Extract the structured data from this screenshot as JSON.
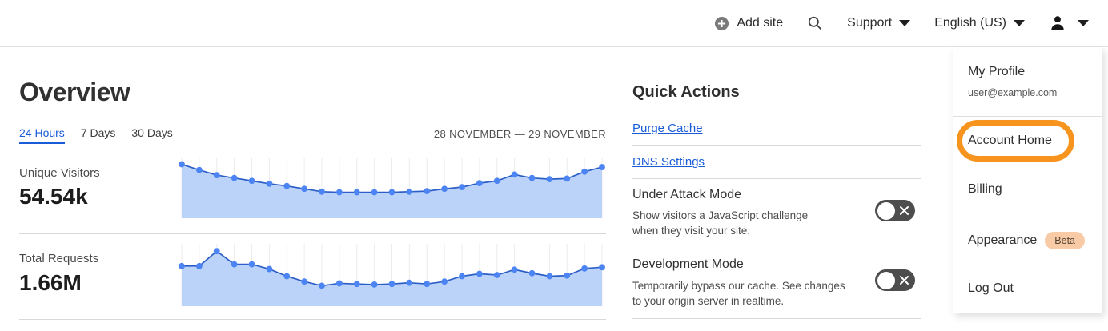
{
  "navbar": {
    "add_site_label": "Add site",
    "support_label": "Support",
    "language_label": "English (US)"
  },
  "page": {
    "title": "Overview",
    "tabs": [
      {
        "label": "24 Hours",
        "active": true
      },
      {
        "label": "7 Days",
        "active": false
      },
      {
        "label": "30 Days",
        "active": false
      }
    ],
    "date_range": "28 NOVEMBER — 29 NOVEMBER"
  },
  "metrics": [
    {
      "label": "Unique Visitors",
      "value": "54.54k"
    },
    {
      "label": "Total Requests",
      "value": "1.66M"
    }
  ],
  "quick_actions": {
    "title": "Quick Actions",
    "links": [
      "Purge Cache",
      "DNS Settings"
    ],
    "toggles": [
      {
        "title": "Under Attack Mode",
        "description": "Show visitors a JavaScript challenge when they visit your site.",
        "state": "off"
      },
      {
        "title": "Development Mode",
        "description": "Temporarily bypass our cache. See changes to your origin server in realtime.",
        "state": "off"
      }
    ]
  },
  "account_menu": {
    "profile_label": "My Profile",
    "profile_email": "user@example.com",
    "items": [
      "Account Home",
      "Billing",
      "Appearance",
      "Log Out"
    ],
    "beta_badge": "Beta",
    "highlighted_item": "Account Home"
  },
  "colors": {
    "link_blue": "#1a5cd7",
    "chart_line": "#2b5fc7",
    "chart_fill": "#bcd3f9",
    "chart_dot": "#4c84f3",
    "chart_grid": "#ececec",
    "toggle_bg": "#4d4d4d",
    "highlight_orange": "#f7941e",
    "beta_badge_bg": "#f8cba6"
  },
  "chart_data": [
    {
      "type": "area",
      "title": "Unique Visitors — 24 Hours",
      "total": "54.54k",
      "x_range": [
        "28 November",
        "29 November"
      ],
      "points": 25,
      "ylim": [
        0,
        1
      ],
      "grid": "vertical",
      "legend": "none",
      "values_normalized": [
        0.93,
        0.83,
        0.74,
        0.69,
        0.64,
        0.59,
        0.55,
        0.5,
        0.45,
        0.44,
        0.44,
        0.44,
        0.44,
        0.45,
        0.46,
        0.5,
        0.53,
        0.6,
        0.64,
        0.75,
        0.69,
        0.67,
        0.68,
        0.8,
        0.88
      ]
    },
    {
      "type": "area",
      "title": "Total Requests — 24 Hours",
      "total": "1.66M",
      "x_range": [
        "28 November",
        "29 November"
      ],
      "points": 25,
      "ylim": [
        0,
        1
      ],
      "grid": "vertical",
      "legend": "none",
      "values_normalized": [
        0.66,
        0.66,
        0.91,
        0.69,
        0.69,
        0.61,
        0.49,
        0.4,
        0.33,
        0.37,
        0.36,
        0.35,
        0.36,
        0.38,
        0.36,
        0.4,
        0.49,
        0.53,
        0.51,
        0.6,
        0.54,
        0.49,
        0.5,
        0.62,
        0.64
      ]
    }
  ]
}
